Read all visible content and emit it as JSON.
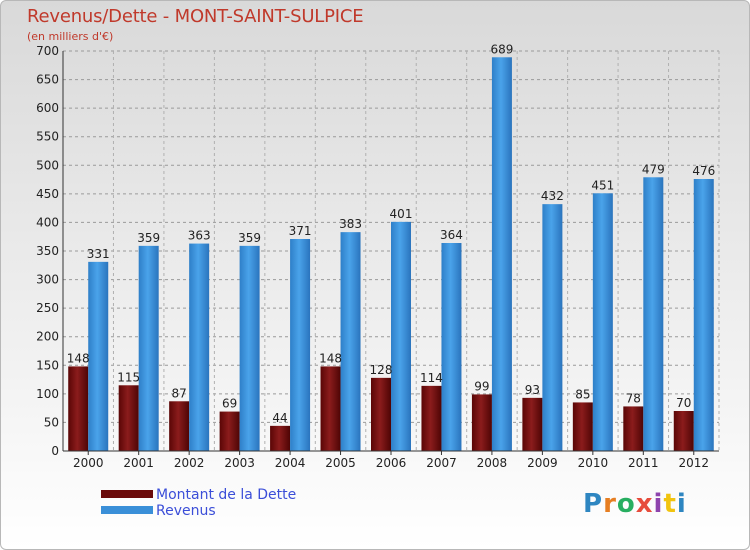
{
  "chart_data": {
    "type": "bar",
    "title": "Revenus/Dette - MONT-SAINT-SULPICE",
    "subtitle": "(en milliers d'€)",
    "categories": [
      "2000",
      "2001",
      "2002",
      "2003",
      "2004",
      "2005",
      "2006",
      "2007",
      "2008",
      "2009",
      "2010",
      "2011",
      "2012"
    ],
    "series": [
      {
        "name": "Montant de la Dette",
        "color": "#7a0e0e",
        "values": [
          148,
          115,
          87,
          69,
          44,
          148,
          128,
          114,
          99,
          93,
          85,
          78,
          70
        ]
      },
      {
        "name": "Revenus",
        "color": "#3a8fd8",
        "values": [
          331,
          359,
          363,
          359,
          371,
          383,
          401,
          364,
          689,
          432,
          451,
          479,
          476
        ]
      }
    ],
    "ylim": [
      0,
      700
    ],
    "yticks": [
      0,
      50,
      100,
      150,
      200,
      250,
      300,
      350,
      400,
      450,
      500,
      550,
      600,
      650,
      700
    ],
    "grid": true,
    "legend_position": "bottom-left"
  },
  "brand": {
    "letters": [
      {
        "ch": "P",
        "color": "#2e86c1"
      },
      {
        "ch": "r",
        "color": "#e67e22"
      },
      {
        "ch": "o",
        "color": "#27ae60"
      },
      {
        "ch": "x",
        "color": "#e74c3c"
      },
      {
        "ch": "i",
        "color": "#8e44ad"
      },
      {
        "ch": "t",
        "color": "#f1c40f"
      },
      {
        "ch": "i",
        "color": "#2e86c1"
      }
    ]
  }
}
